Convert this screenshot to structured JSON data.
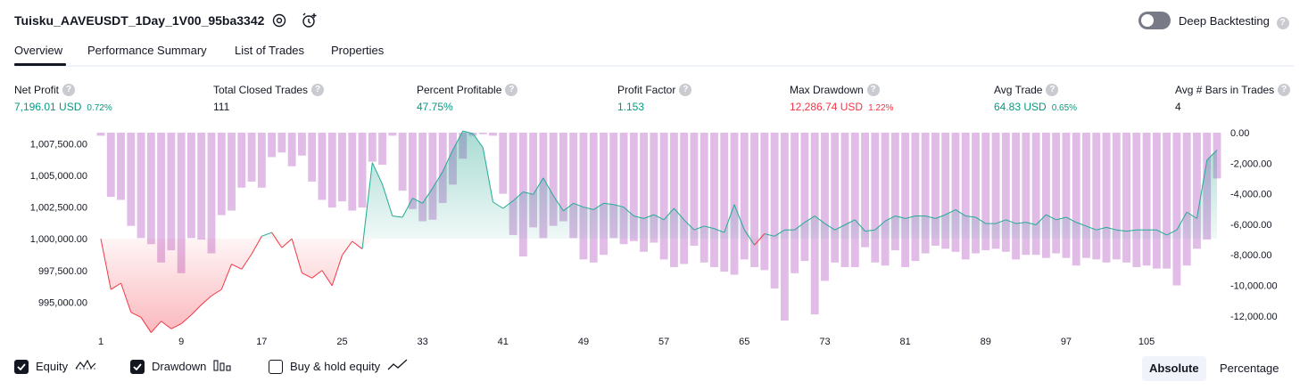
{
  "header": {
    "strategy_title": "Tuisku_AAVEUSDT_1Day_1V00_95ba3342",
    "deep_backtesting_label": "Deep Backtesting",
    "deep_backtesting_enabled": false
  },
  "tabs": [
    {
      "label": "Overview",
      "active": true
    },
    {
      "label": "Performance Summary",
      "active": false
    },
    {
      "label": "List of Trades",
      "active": false
    },
    {
      "label": "Properties",
      "active": false
    }
  ],
  "stats": [
    {
      "label": "Net Profit",
      "value": "7,196.01 USD",
      "pct": "0.72%",
      "color": "green"
    },
    {
      "label": "Total Closed Trades",
      "value": "111",
      "pct": "",
      "color": "dark"
    },
    {
      "label": "Percent Profitable",
      "value": "47.75%",
      "pct": "",
      "color": "green"
    },
    {
      "label": "Profit Factor",
      "value": "1.153",
      "pct": "",
      "color": "green"
    },
    {
      "label": "Max Drawdown",
      "value": "12,286.74 USD",
      "pct": "1.22%",
      "color": "red"
    },
    {
      "label": "Avg Trade",
      "value": "64.83 USD",
      "pct": "0.65%",
      "color": "green"
    },
    {
      "label": "Avg # Bars in Trades",
      "value": "4",
      "pct": "",
      "color": "dark"
    }
  ],
  "legend": {
    "equity_label": "Equity",
    "equity_checked": true,
    "drawdown_label": "Drawdown",
    "drawdown_checked": true,
    "buyhold_label": "Buy & hold equity",
    "buyhold_checked": false
  },
  "view_toggle": {
    "absolute_label": "Absolute",
    "percentage_label": "Percentage",
    "active": "Absolute"
  },
  "colors": {
    "equity_up": "#089981",
    "equity_down": "#f23645",
    "drawdown_bar": "#ce93d8",
    "equity_line": "#22ab94"
  },
  "chart_data": {
    "type": "area",
    "x_tick_labels": [
      "1",
      "9",
      "17",
      "25",
      "33",
      "41",
      "49",
      "57",
      "65",
      "73",
      "81",
      "89",
      "97",
      "105"
    ],
    "left_axis": {
      "tick_labels": [
        "1,007,500.00",
        "1,005,000.00",
        "1,002,500.00",
        "1,000,000.00",
        "997,500.00",
        "995,000.00"
      ],
      "ylim": [
        993200,
        1009000
      ]
    },
    "right_axis": {
      "tick_labels": [
        "0.00",
        "-2,000.00",
        "-4,000.00",
        "-6,000.00",
        "-8,000.00",
        "-10,000.00",
        "-12,000.00"
      ],
      "ylim": [
        -12300,
        0
      ]
    },
    "baseline": 1000000,
    "series": [
      {
        "name": "Equity",
        "x": [
          1,
          2,
          3,
          4,
          5,
          6,
          7,
          8,
          9,
          10,
          11,
          12,
          13,
          14,
          15,
          16,
          17,
          18,
          19,
          20,
          21,
          22,
          23,
          24,
          25,
          26,
          27,
          28,
          29,
          30,
          31,
          32,
          33,
          34,
          35,
          36,
          37,
          38,
          39,
          40,
          41,
          42,
          43,
          44,
          45,
          46,
          47,
          48,
          49,
          50,
          51,
          52,
          53,
          54,
          55,
          56,
          57,
          58,
          59,
          60,
          61,
          62,
          63,
          64,
          65,
          66,
          67,
          68,
          69,
          70,
          71,
          72,
          73,
          74,
          75,
          76,
          77,
          78,
          79,
          80,
          81,
          82,
          83,
          84,
          85,
          86,
          87,
          88,
          89,
          90,
          91,
          92,
          93,
          94,
          95,
          96,
          97,
          98,
          99,
          100,
          101,
          102,
          103,
          104,
          105,
          106,
          107,
          108,
          109,
          110,
          111,
          112
        ],
        "values": [
          1000000,
          996000,
          996500,
          994200,
          993800,
          992600,
          993500,
          992900,
          993300,
          994000,
          994800,
          995500,
          996000,
          998000,
          997600,
          998800,
          1000200,
          1000500,
          999300,
          1000000,
          997300,
          996900,
          997500,
          996300,
          998700,
          999800,
          999200,
          1006000,
          1004300,
          1001800,
          1001700,
          1003200,
          1002800,
          1004000,
          1005300,
          1007000,
          1008500,
          1008300,
          1007200,
          1002900,
          1002400,
          1003000,
          1003700,
          1003500,
          1004800,
          1003400,
          1002200,
          1002800,
          1002500,
          1002300,
          1002800,
          1002700,
          1002500,
          1001800,
          1001600,
          1001900,
          1001500,
          1002400,
          1001500,
          1000700,
          1001000,
          1000800,
          1000500,
          1002700,
          1000700,
          999500,
          1000400,
          1000200,
          1000700,
          1000700,
          1001300,
          1001800,
          1001200,
          1000700,
          1001100,
          1001500,
          1000600,
          1000700,
          1001400,
          1001800,
          1001600,
          1001800,
          1001800,
          1001600,
          1001900,
          1002300,
          1001800,
          1001700,
          1001200,
          1001200,
          1001500,
          1001200,
          1001300,
          1001100,
          1001900,
          1001500,
          1001700,
          1001300,
          1001000,
          1000700,
          1000900,
          1000700,
          1000600,
          1000700,
          1000700,
          1000700,
          1000300,
          1000700,
          1002100,
          1001600,
          1006200,
          1007000
        ]
      },
      {
        "name": "Drawdown",
        "x": [
          1,
          2,
          3,
          4,
          5,
          6,
          7,
          8,
          9,
          10,
          11,
          12,
          13,
          14,
          15,
          16,
          17,
          18,
          19,
          20,
          21,
          22,
          23,
          24,
          25,
          26,
          27,
          28,
          29,
          30,
          31,
          32,
          33,
          34,
          35,
          36,
          37,
          38,
          39,
          40,
          41,
          42,
          43,
          44,
          45,
          46,
          47,
          48,
          49,
          50,
          51,
          52,
          53,
          54,
          55,
          56,
          57,
          58,
          59,
          60,
          61,
          62,
          63,
          64,
          65,
          66,
          67,
          68,
          69,
          70,
          71,
          72,
          73,
          74,
          75,
          76,
          77,
          78,
          79,
          80,
          81,
          82,
          83,
          84,
          85,
          86,
          87,
          88,
          89,
          90,
          91,
          92,
          93,
          94,
          95,
          96,
          97,
          98,
          99,
          100,
          101,
          102,
          103,
          104,
          105,
          106,
          107,
          108,
          109,
          110,
          111,
          112
        ],
        "values": [
          -200,
          -4200,
          -4400,
          -6100,
          -6900,
          -7300,
          -8500,
          -7700,
          -9200,
          -6900,
          -7000,
          -7900,
          -5400,
          -5100,
          -3600,
          -3200,
          -3600,
          -1600,
          -1300,
          -2200,
          -1500,
          -3200,
          -4400,
          -4900,
          -4500,
          -5100,
          -4900,
          -1900,
          -2100,
          -200,
          -3800,
          -5000,
          -5800,
          -5700,
          -4600,
          -3400,
          -1700,
          -200,
          -100,
          -200,
          -4000,
          -6700,
          -8100,
          -6200,
          -6900,
          -6100,
          -5800,
          -6900,
          -8300,
          -8500,
          -8000,
          -6900,
          -7300,
          -7100,
          -7800,
          -7200,
          -8300,
          -8800,
          -8600,
          -7400,
          -8500,
          -8800,
          -9100,
          -9300,
          -8300,
          -8800,
          -9000,
          -10200,
          -12300,
          -9200,
          -8400,
          -11900,
          -9700,
          -8500,
          -8800,
          -8800,
          -7500,
          -8500,
          -8700,
          -7700,
          -8800,
          -8400,
          -7900,
          -7400,
          -7600,
          -7800,
          -8300,
          -7900,
          -7700,
          -7600,
          -7800,
          -8300,
          -8000,
          -8000,
          -8200,
          -7900,
          -8200,
          -8700,
          -8200,
          -8300,
          -8500,
          -8300,
          -8500,
          -8800,
          -8700,
          -8900,
          -8900,
          -10000,
          -8700,
          -7600,
          -7000,
          -3000
        ]
      }
    ],
    "grid": false,
    "legend_position": "bottom-left"
  }
}
